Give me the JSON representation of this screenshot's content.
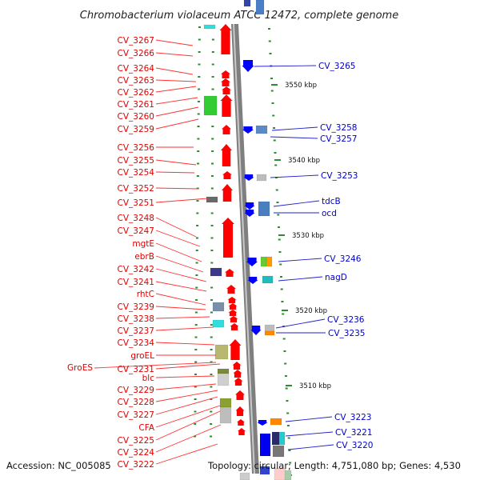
{
  "title": "Chromobacterium violaceum ATCC 12472, complete genome",
  "accession": "Accession: NC_005085",
  "topology": "Topology: circular; Length: 4,751,080 bp; Genes: 4,530",
  "colors": {
    "forward": "#ff0000",
    "reverse": "#0000ff",
    "backbone": "#7f7f7f",
    "tick": "#2e8b2e"
  },
  "scale_marks": [
    "3550 kbp",
    "3540 kbp",
    "3530 kbp",
    "3520 kbp",
    "3510 kbp"
  ],
  "left_labels": [
    "CV_3267",
    "CV_3266",
    "CV_3264",
    "CV_3263",
    "CV_3262",
    "CV_3261",
    "CV_3260",
    "CV_3259",
    "CV_3256",
    "CV_3255",
    "CV_3254",
    "CV_3252",
    "CV_3251",
    "CV_3248",
    "CV_3247",
    "mgtE",
    "ebrB",
    "CV_3242",
    "CV_3241",
    "rhtC",
    "CV_3239",
    "CV_3238",
    "CV_3237",
    "CV_3234",
    "groEL",
    "CV_3231",
    "blc",
    "CV_3229",
    "CV_3228",
    "CV_3227",
    "CFA",
    "CV_3225",
    "CV_3224",
    "CV_3222"
  ],
  "groes_label": "GroES",
  "right_labels": [
    "CV_3265",
    "CV_3258",
    "CV_3257",
    "CV_3253",
    "tdcB",
    "ocd",
    "CV_3246",
    "nagD",
    "CV_3236",
    "CV_3235",
    "CV_3223",
    "CV_3221",
    "CV_3220"
  ]
}
